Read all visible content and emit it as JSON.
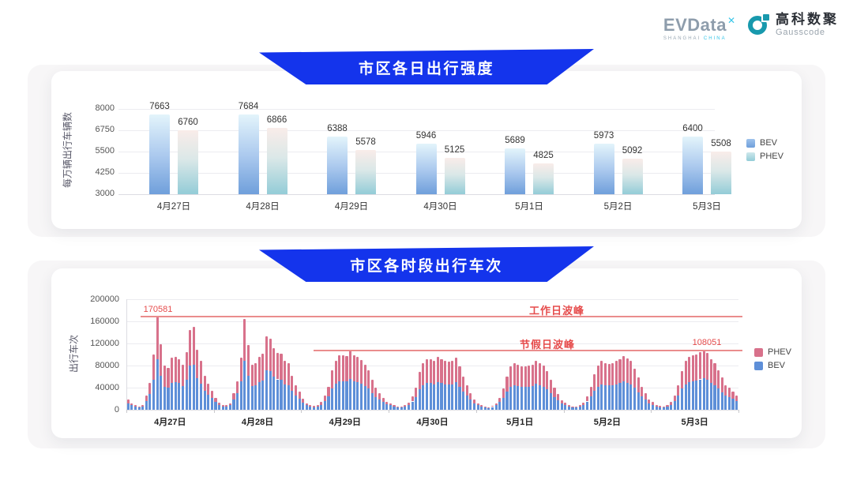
{
  "header": {
    "evdata": {
      "name": "EVData",
      "mark": "✕",
      "tagline_left": "SHANGHAI",
      "tagline_right": "CHINA"
    },
    "gausscode": {
      "cn": "高科数聚",
      "en": "Gausscode"
    }
  },
  "colors": {
    "ribbon_blue": "#1434ec",
    "bev_blue": "#5e8fd8",
    "phev_pink": "#d8718b",
    "annotation_red": "#e64c4c",
    "bev_gradient_top": "#e3f4fb",
    "bev_gradient_bottom": "#6f9fdb",
    "phev_gradient_top": "#f9ece9",
    "phev_gradient_bottom": "#93ccd7"
  },
  "chart_data": [
    {
      "type": "bar",
      "title": "市区各日出行强度",
      "ylabel": "每万辆出行车辆数",
      "categories": [
        "4月27日",
        "4月28日",
        "4月29日",
        "4月30日",
        "5月1日",
        "5月2日",
        "5月3日"
      ],
      "ylim": [
        3000,
        8000
      ],
      "yticks": [
        3000,
        4250,
        5500,
        6750,
        8000
      ],
      "grid": true,
      "legend_position": "right",
      "legend_order": [
        "BEV",
        "PHEV"
      ],
      "series": [
        {
          "name": "BEV",
          "values": [
            7663,
            7684,
            6388,
            5946,
            5689,
            5973,
            6400
          ]
        },
        {
          "name": "PHEV",
          "values": [
            6760,
            6866,
            5578,
            5125,
            4825,
            5092,
            5508
          ]
        }
      ]
    },
    {
      "type": "bar",
      "subtype": "stacked",
      "title": "市区各时段出行车次",
      "ylabel": "出行车次",
      "categories": [
        "4月27日",
        "4月28日",
        "4月29日",
        "4月30日",
        "5月1日",
        "5月2日",
        "5月3日"
      ],
      "bars_per_category": 24,
      "ylim": [
        0,
        200000
      ],
      "yticks": [
        0,
        40000,
        80000,
        120000,
        160000,
        200000
      ],
      "legend_position": "right",
      "legend_order": [
        "PHEV",
        "BEV"
      ],
      "annotations": [
        {
          "label": "工作日波峰",
          "value": 170581,
          "value_label": "170581",
          "span": "full"
        },
        {
          "label": "节假日波峰",
          "value": 108051,
          "value_label": "108051",
          "span": "partial"
        }
      ],
      "series": [
        {
          "name": "BEV",
          "color": "#5e8fd8",
          "values_by_day": [
            [
              12000,
              8000,
              5500,
              4000,
              6000,
              16000,
              28000,
              54000,
              91000,
              62000,
              42000,
              40000,
              49000,
              50000,
              48000,
              43000,
              55000,
              80000,
              82000,
              57000,
              47000,
              34000,
              27000,
              21000
            ],
            [
              14000,
              9000,
              6000,
              5500,
              8000,
              18000,
              30000,
              51000,
              88000,
              61000,
              43000,
              44000,
              50000,
              53000,
              72000,
              70000,
              60000,
              55000,
              54000,
              46000,
              45000,
              34000,
              26000,
              20000
            ],
            [
              13000,
              8000,
              5500,
              4700,
              6000,
              9000,
              16000,
              24000,
              39000,
              47000,
              52000,
              52000,
              51000,
              56000,
              52000,
              50000,
              47000,
              43000,
              38000,
              30000,
              23000,
              18000,
              14000,
              10000
            ],
            [
              8000,
              5500,
              4000,
              4000,
              5500,
              8500,
              15000,
              23000,
              37000,
              45000,
              48000,
              48000,
              46000,
              50000,
              48000,
              46000,
              46000,
              46000,
              50000,
              41000,
              33000,
              26000,
              18000,
              12000
            ],
            [
              8000,
              5500,
              4000,
              3500,
              5000,
              8000,
              14000,
              22000,
              33000,
              41000,
              45000,
              43000,
              42000,
              41000,
              42000,
              43000,
              47000,
              44000,
              42000,
              37000,
              30000,
              23000,
              17000,
              11000
            ],
            [
              8500,
              6000,
              4000,
              4000,
              5500,
              8500,
              15000,
              24000,
              35000,
              42000,
              46000,
              45000,
              44000,
              45000,
              46000,
              48000,
              51000,
              49000,
              46000,
              40000,
              32000,
              24000,
              18000,
              12000
            ],
            [
              9000,
              6000,
              4700,
              4000,
              5500,
              9000,
              16000,
              26000,
              38000,
              46000,
              50000,
              52000,
              53000,
              55000,
              57000,
              54000,
              48000,
              45000,
              38000,
              32000,
              26000,
              23000,
              20000,
              16000
            ]
          ]
        },
        {
          "name": "PHEV",
          "color": "#d8718b",
          "values_by_day": [
            [
              6000,
              4000,
              2500,
              2000,
              3000,
              10000,
              20000,
              46000,
              79581,
              57000,
              38000,
              36000,
              45000,
              46000,
              44000,
              39000,
              50000,
              65000,
              68000,
              51000,
              42000,
              28000,
              20000,
              14000
            ],
            [
              8000,
              4000,
              3000,
              2500,
              4000,
              12000,
              22000,
              44000,
              77000,
              56000,
              39000,
              40000,
              46000,
              48000,
              61000,
              58000,
              52000,
              48000,
              48000,
              42000,
              40000,
              28000,
              19000,
              13000
            ],
            [
              7000,
              4000,
              2500,
              2300,
              3000,
              5000,
              10000,
              18000,
              33000,
              41000,
              46000,
              47000,
              46000,
              51000,
              47000,
              46000,
              43000,
              39000,
              34000,
              25000,
              17000,
              12000,
              8000,
              5000
            ],
            [
              4000,
              2500,
              2000,
              2000,
              2500,
              4500,
              9000,
              17000,
              31000,
              40000,
              44000,
              43000,
              42000,
              46000,
              43000,
              42000,
              41000,
              42000,
              45000,
              37000,
              27000,
              19000,
              12000,
              6000
            ],
            [
              4000,
              2500,
              2000,
              1500,
              2000,
              4000,
              8000,
              16000,
              27000,
              37000,
              40000,
              39000,
              37000,
              37000,
              38000,
              39000,
              42000,
              40000,
              38000,
              33000,
              25000,
              17000,
              11000,
              6000
            ],
            [
              4500,
              3000,
              2000,
              2000,
              2500,
              4500,
              9000,
              18000,
              30000,
              38000,
              42000,
              40000,
              39000,
              40000,
              42000,
              44000,
              46000,
              44000,
              42000,
              35000,
              26000,
              18000,
              12000,
              6000
            ],
            [
              5000,
              3000,
              2300,
              2000,
              2500,
              5000,
              10000,
              19000,
              32000,
              42000,
              46000,
              47000,
              47000,
              49000,
              51051,
              49000,
              44000,
              40000,
              34000,
              26000,
              19000,
              17000,
              13000,
              10000
            ]
          ]
        }
      ]
    }
  ]
}
